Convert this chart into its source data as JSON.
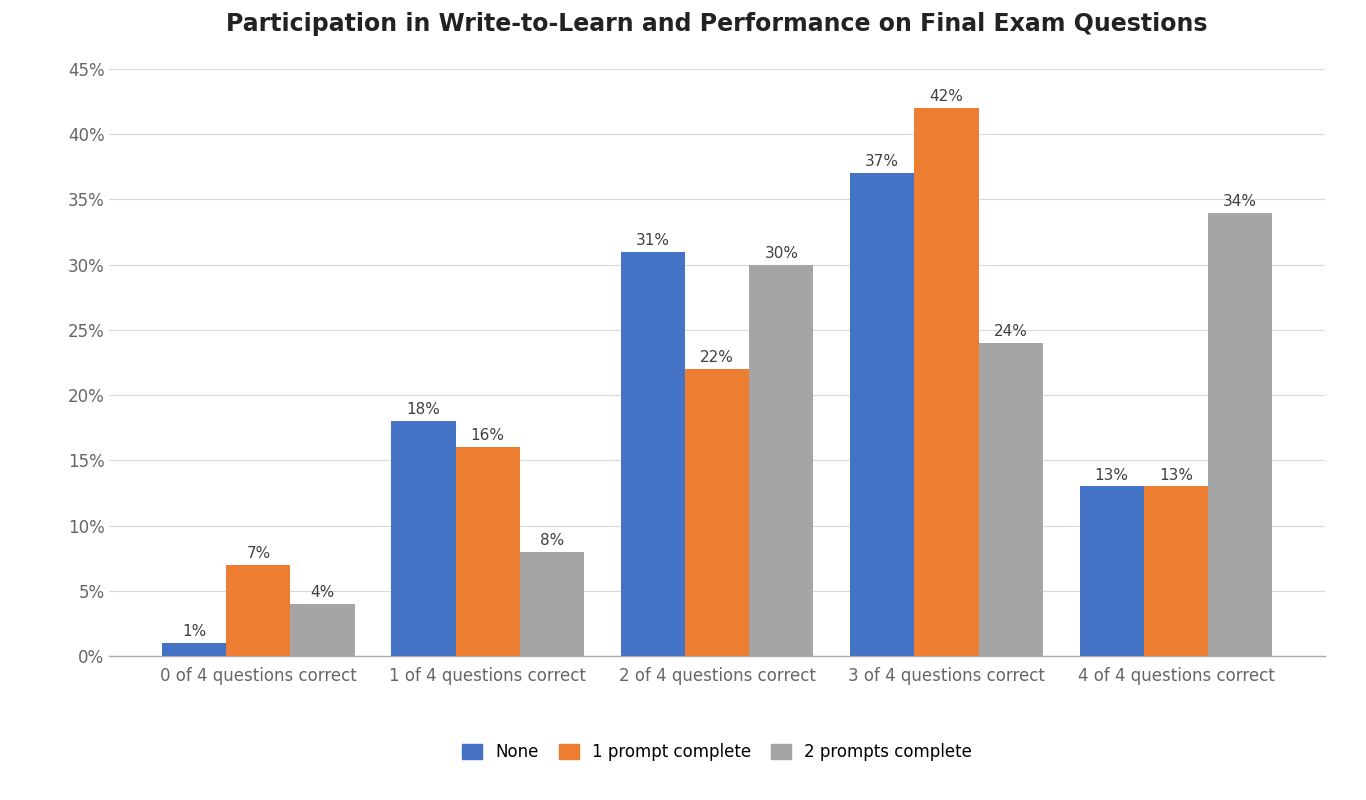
{
  "title": "Participation in Write-to-Learn and Performance on Final Exam Questions",
  "categories": [
    "0 of 4 questions correct",
    "1 of 4 questions correct",
    "2 of 4 questions correct",
    "3 of 4 questions correct",
    "4 of 4 questions correct"
  ],
  "series": {
    "None": [
      1,
      18,
      31,
      37,
      13
    ],
    "1 prompt complete": [
      7,
      16,
      22,
      42,
      13
    ],
    "2 prompts complete": [
      4,
      8,
      30,
      24,
      34
    ]
  },
  "colors": {
    "None": "#4472C4",
    "1 prompt complete": "#ED7D31",
    "2 prompts complete": "#A5A5A5"
  },
  "ylim": [
    0,
    46
  ],
  "yticks": [
    0,
    5,
    10,
    15,
    20,
    25,
    30,
    35,
    40,
    45
  ],
  "ytick_labels": [
    "0%",
    "5%",
    "10%",
    "15%",
    "20%",
    "25%",
    "30%",
    "35%",
    "40%",
    "45%"
  ],
  "bar_width": 0.28,
  "legend_labels": [
    "None",
    "1 prompt complete",
    "2 prompts complete"
  ],
  "title_fontsize": 17,
  "tick_fontsize": 12,
  "label_fontsize": 12,
  "annotation_fontsize": 11,
  "background_color": "#FFFFFF",
  "grid_color": "#D9D9D9"
}
